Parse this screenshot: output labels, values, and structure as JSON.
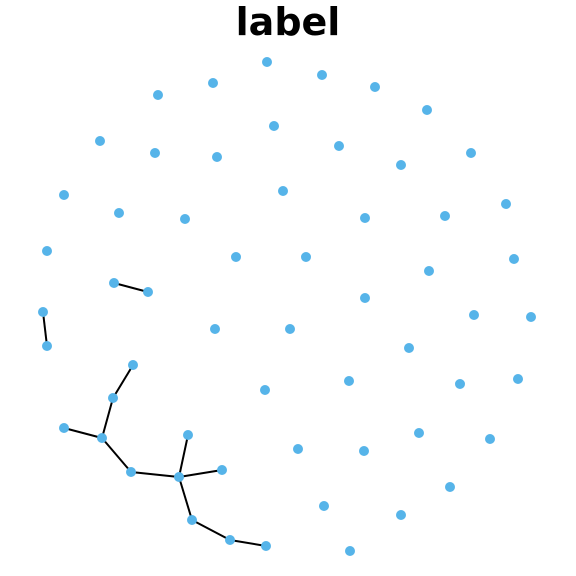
{
  "title": "label",
  "colors": {
    "node": "#56b4e9",
    "edge": "#000000",
    "background": "#ffffff"
  },
  "graph": {
    "node_count": 57,
    "edges": [
      [
        "a1",
        "a2"
      ],
      [
        "b1",
        "b2"
      ],
      [
        "c1",
        "c2"
      ],
      [
        "c2",
        "c3"
      ],
      [
        "c3",
        "c4"
      ],
      [
        "c3",
        "c5"
      ],
      [
        "c5",
        "c6"
      ],
      [
        "c6",
        "c7"
      ],
      [
        "c6",
        "c8"
      ],
      [
        "c6",
        "c9"
      ],
      [
        "c9",
        "c10"
      ],
      [
        "c10",
        "c11"
      ]
    ]
  }
}
